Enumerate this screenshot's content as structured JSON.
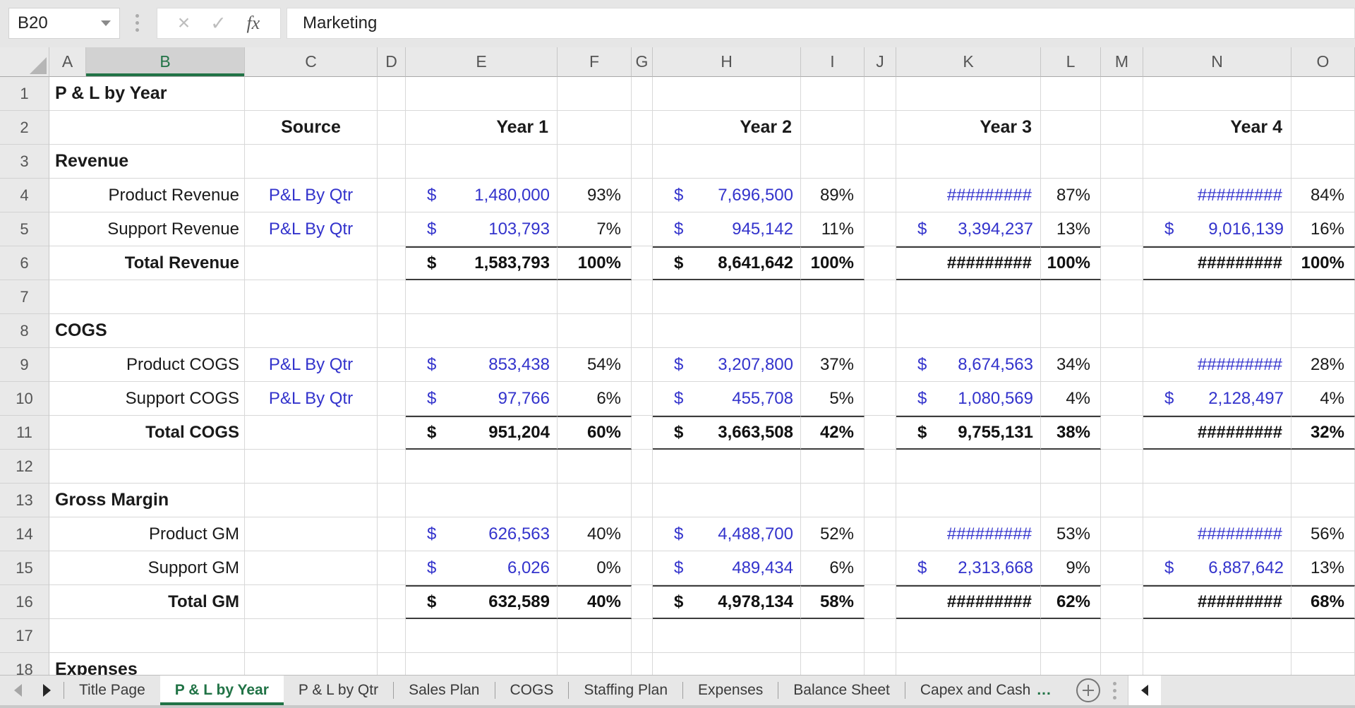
{
  "colors": {
    "excel_green": "#217346",
    "value_blue": "#3333CC"
  },
  "name_box": {
    "cell_ref": "B20"
  },
  "formula_bar": {
    "value": "Marketing",
    "fx_label": "fx",
    "cancel_label": "×",
    "confirm_label": "✓"
  },
  "grid": {
    "columns": [
      "A",
      "B",
      "C",
      "D",
      "E",
      "F",
      "G",
      "H",
      "I",
      "J",
      "K",
      "L",
      "M",
      "N",
      "O"
    ],
    "selected_column": "B",
    "rows": [
      {
        "num": 1,
        "cells": {
          "A": {
            "type": "section",
            "text": "P & L by Year"
          }
        }
      },
      {
        "num": 2,
        "cells": {
          "C": {
            "type": "hdr_center",
            "text": "Source"
          },
          "E": {
            "type": "hdr_right",
            "text": "Year 1"
          },
          "H": {
            "type": "hdr_right",
            "text": "Year 2"
          },
          "K": {
            "type": "hdr_right",
            "text": "Year 3"
          },
          "N": {
            "type": "hdr_right",
            "text": "Year 4"
          }
        }
      },
      {
        "num": 3,
        "cells": {
          "A": {
            "type": "section",
            "text": "Revenue"
          }
        }
      },
      {
        "num": 4,
        "cells": {
          "B": {
            "type": "label",
            "text": "Product Revenue"
          },
          "C": {
            "type": "source",
            "text": "P&L By Qtr"
          },
          "E": {
            "type": "money",
            "d": "$",
            "text": "1,480,000"
          },
          "F": {
            "type": "pct",
            "text": "93%"
          },
          "H": {
            "type": "money",
            "d": "$",
            "text": "7,696,500"
          },
          "I": {
            "type": "pct",
            "text": "89%"
          },
          "K": {
            "type": "hash",
            "text": "#########"
          },
          "L": {
            "type": "pct",
            "text": "87%"
          },
          "N": {
            "type": "hash",
            "text": "#########"
          },
          "O": {
            "type": "pct",
            "text": "84%"
          }
        }
      },
      {
        "num": 5,
        "cells": {
          "B": {
            "type": "label",
            "text": "Support Revenue"
          },
          "C": {
            "type": "source",
            "text": "P&L By Qtr"
          },
          "E": {
            "type": "money",
            "d": "$",
            "text": "103,793"
          },
          "F": {
            "type": "pct",
            "text": "7%"
          },
          "H": {
            "type": "money",
            "d": "$",
            "text": "945,142"
          },
          "I": {
            "type": "pct",
            "text": "11%"
          },
          "K": {
            "type": "money",
            "d": "$",
            "text": "3,394,237"
          },
          "L": {
            "type": "pct",
            "text": "13%"
          },
          "N": {
            "type": "money",
            "d": "$",
            "text": "9,016,139"
          },
          "O": {
            "type": "pct",
            "text": "16%"
          }
        }
      },
      {
        "num": 6,
        "total": true,
        "cells": {
          "B": {
            "type": "label",
            "b": true,
            "text": "Total Revenue"
          },
          "E": {
            "type": "money",
            "b": true,
            "d": "$",
            "text": "1,583,793"
          },
          "F": {
            "type": "pct",
            "b": true,
            "text": "100%"
          },
          "H": {
            "type": "money",
            "b": true,
            "d": "$",
            "text": "8,641,642"
          },
          "I": {
            "type": "pct",
            "b": true,
            "text": "100%"
          },
          "K": {
            "type": "hash",
            "b": true,
            "text": "#########"
          },
          "L": {
            "type": "pct",
            "b": true,
            "text": "100%"
          },
          "N": {
            "type": "hash",
            "b": true,
            "text": "#########"
          },
          "O": {
            "type": "pct",
            "b": true,
            "text": "100%"
          }
        }
      },
      {
        "num": 7,
        "cells": {}
      },
      {
        "num": 8,
        "cells": {
          "A": {
            "type": "section",
            "text": "COGS"
          }
        }
      },
      {
        "num": 9,
        "cells": {
          "B": {
            "type": "label",
            "text": "Product COGS"
          },
          "C": {
            "type": "source",
            "text": "P&L By Qtr"
          },
          "E": {
            "type": "money",
            "d": "$",
            "text": "853,438"
          },
          "F": {
            "type": "pct",
            "text": "54%"
          },
          "H": {
            "type": "money",
            "d": "$",
            "text": "3,207,800"
          },
          "I": {
            "type": "pct",
            "text": "37%"
          },
          "K": {
            "type": "money",
            "d": "$",
            "text": "8,674,563"
          },
          "L": {
            "type": "pct",
            "text": "34%"
          },
          "N": {
            "type": "hash",
            "text": "#########"
          },
          "O": {
            "type": "pct",
            "text": "28%"
          }
        }
      },
      {
        "num": 10,
        "cells": {
          "B": {
            "type": "label",
            "text": "Support COGS"
          },
          "C": {
            "type": "source",
            "text": "P&L By Qtr"
          },
          "E": {
            "type": "money",
            "d": "$",
            "text": "97,766"
          },
          "F": {
            "type": "pct",
            "text": "6%"
          },
          "H": {
            "type": "money",
            "d": "$",
            "text": "455,708"
          },
          "I": {
            "type": "pct",
            "text": "5%"
          },
          "K": {
            "type": "money",
            "d": "$",
            "text": "1,080,569"
          },
          "L": {
            "type": "pct",
            "text": "4%"
          },
          "N": {
            "type": "money",
            "d": "$",
            "text": "2,128,497"
          },
          "O": {
            "type": "pct",
            "text": "4%"
          }
        }
      },
      {
        "num": 11,
        "total": true,
        "cells": {
          "B": {
            "type": "label",
            "b": true,
            "text": "Total COGS"
          },
          "E": {
            "type": "money",
            "b": true,
            "d": "$",
            "text": "951,204"
          },
          "F": {
            "type": "pct",
            "b": true,
            "text": "60%"
          },
          "H": {
            "type": "money",
            "b": true,
            "d": "$",
            "text": "3,663,508"
          },
          "I": {
            "type": "pct",
            "b": true,
            "text": "42%"
          },
          "K": {
            "type": "money",
            "b": true,
            "d": "$",
            "text": "9,755,131"
          },
          "L": {
            "type": "pct",
            "b": true,
            "text": "38%"
          },
          "N": {
            "type": "hash",
            "b": true,
            "text": "#########"
          },
          "O": {
            "type": "pct",
            "b": true,
            "text": "32%"
          }
        }
      },
      {
        "num": 12,
        "cells": {}
      },
      {
        "num": 13,
        "cells": {
          "A": {
            "type": "section",
            "text": "Gross Margin"
          }
        }
      },
      {
        "num": 14,
        "cells": {
          "B": {
            "type": "label",
            "text": "Product GM"
          },
          "E": {
            "type": "money",
            "d": "$",
            "text": "626,563"
          },
          "F": {
            "type": "pct",
            "text": "40%"
          },
          "H": {
            "type": "money",
            "d": "$",
            "text": "4,488,700"
          },
          "I": {
            "type": "pct",
            "text": "52%"
          },
          "K": {
            "type": "hash",
            "text": "#########"
          },
          "L": {
            "type": "pct",
            "text": "53%"
          },
          "N": {
            "type": "hash",
            "text": "#########"
          },
          "O": {
            "type": "pct",
            "text": "56%"
          }
        }
      },
      {
        "num": 15,
        "cells": {
          "B": {
            "type": "label",
            "text": "Support GM"
          },
          "E": {
            "type": "money",
            "d": "$",
            "text": "6,026"
          },
          "F": {
            "type": "pct",
            "text": "0%"
          },
          "H": {
            "type": "money",
            "d": "$",
            "text": "489,434"
          },
          "I": {
            "type": "pct",
            "text": "6%"
          },
          "K": {
            "type": "money",
            "d": "$",
            "text": "2,313,668"
          },
          "L": {
            "type": "pct",
            "text": "9%"
          },
          "N": {
            "type": "money",
            "d": "$",
            "text": "6,887,642"
          },
          "O": {
            "type": "pct",
            "text": "13%"
          }
        }
      },
      {
        "num": 16,
        "total": true,
        "cells": {
          "B": {
            "type": "label",
            "b": true,
            "text": "Total GM"
          },
          "E": {
            "type": "money",
            "b": true,
            "d": "$",
            "text": "632,589"
          },
          "F": {
            "type": "pct",
            "b": true,
            "text": "40%"
          },
          "H": {
            "type": "money",
            "b": true,
            "d": "$",
            "text": "4,978,134"
          },
          "I": {
            "type": "pct",
            "b": true,
            "text": "58%"
          },
          "K": {
            "type": "hash",
            "b": true,
            "text": "#########"
          },
          "L": {
            "type": "pct",
            "b": true,
            "text": "62%"
          },
          "N": {
            "type": "hash",
            "b": true,
            "text": "#########"
          },
          "O": {
            "type": "pct",
            "b": true,
            "text": "68%"
          }
        }
      },
      {
        "num": 17,
        "cells": {}
      },
      {
        "num": 18,
        "cells": {
          "A": {
            "type": "section",
            "text": "Expenses"
          }
        }
      }
    ]
  },
  "tab_bar": {
    "tabs": [
      {
        "label": "Title Page"
      },
      {
        "label": "P & L by Year",
        "active": true
      },
      {
        "label": "P & L by Qtr"
      },
      {
        "label": "Sales Plan"
      },
      {
        "label": "COGS"
      },
      {
        "label": "Staffing Plan"
      },
      {
        "label": "Expenses"
      },
      {
        "label": "Balance Sheet"
      },
      {
        "label": "Capex and Cash",
        "ellipsis": "..."
      }
    ]
  }
}
